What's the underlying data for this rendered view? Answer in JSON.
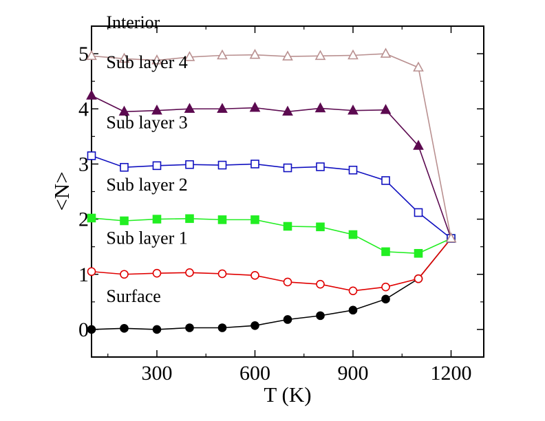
{
  "chart_data": {
    "type": "line",
    "xlabel": "T (K)",
    "ylabel": "<N>",
    "xlim": [
      100,
      1300
    ],
    "ylim": [
      -0.5,
      5.5
    ],
    "x_ticks": [
      300,
      600,
      900,
      1200
    ],
    "x_tick_labels": [
      "300",
      "600",
      "900",
      "1200"
    ],
    "y_ticks": [
      0,
      1,
      2,
      3,
      4,
      5
    ],
    "y_tick_labels": [
      "0",
      "1",
      "2",
      "3",
      "4",
      "5"
    ],
    "x": [
      100,
      200,
      300,
      400,
      500,
      600,
      700,
      800,
      900,
      1000,
      1100,
      1200
    ],
    "series": [
      {
        "name": "Surface",
        "color": "#000000",
        "marker": "filled-circle",
        "values": [
          0.0,
          0.02,
          0.0,
          0.03,
          0.03,
          0.07,
          0.18,
          0.25,
          0.35,
          0.55,
          0.92,
          1.65
        ]
      },
      {
        "name": "Sub layer 1",
        "color": "#e00000",
        "marker": "open-circle",
        "values": [
          1.05,
          1.0,
          1.02,
          1.03,
          1.01,
          0.98,
          0.86,
          0.82,
          0.7,
          0.77,
          0.92,
          1.65
        ]
      },
      {
        "name": "Sub layer 2",
        "color": "#22ee22",
        "marker": "filled-square",
        "values": [
          2.02,
          1.97,
          2.0,
          2.01,
          1.99,
          1.99,
          1.87,
          1.86,
          1.72,
          1.41,
          1.38,
          1.65
        ]
      },
      {
        "name": "Sub layer 3",
        "color": "#1010c0",
        "marker": "open-square",
        "values": [
          3.15,
          2.94,
          2.97,
          2.99,
          2.98,
          3.0,
          2.93,
          2.95,
          2.89,
          2.7,
          2.12,
          1.65
        ]
      },
      {
        "name": "Sub layer 4",
        "color": "#5c0a50",
        "marker": "filled-triangle",
        "values": [
          4.24,
          3.95,
          3.97,
          4.0,
          4.0,
          4.02,
          3.95,
          4.01,
          3.97,
          3.98,
          3.33,
          1.65
        ]
      },
      {
        "name": "Interior",
        "color": "#b99090",
        "marker": "open-triangle",
        "values": [
          4.96,
          4.91,
          4.88,
          4.94,
          4.97,
          4.98,
          4.95,
          4.96,
          4.97,
          5.0,
          4.75,
          1.65
        ]
      }
    ],
    "grid": false,
    "legend": "inline labels above each curve"
  }
}
